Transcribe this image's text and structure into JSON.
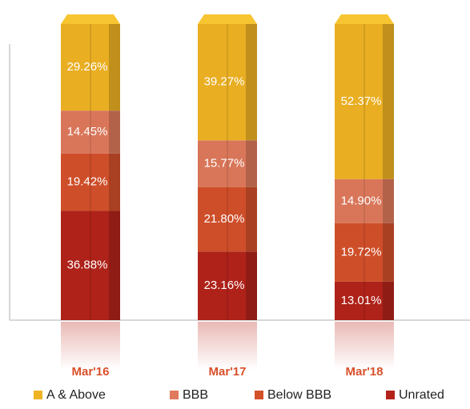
{
  "chart_data": {
    "type": "bar",
    "stacked": true,
    "categories": [
      "Mar'16",
      "Mar'17",
      "Mar'18"
    ],
    "ylim": [
      0,
      100
    ],
    "series": [
      {
        "name": "Unrated",
        "color": "#b3231a",
        "values": [
          36.88,
          23.16,
          13.01
        ],
        "value_labels": [
          "36.88%",
          "23.16%",
          "13.01%"
        ]
      },
      {
        "name": "Below BBB",
        "color": "#d4502a",
        "values": [
          19.42,
          21.8,
          19.72
        ],
        "value_labels": [
          "19.42%",
          "21.80%",
          "19.72%"
        ]
      },
      {
        "name": "BBB",
        "color": "#e07a5c",
        "values": [
          14.45,
          15.77,
          14.9
        ],
        "value_labels": [
          "14.45%",
          "15.77%",
          "14.90%"
        ]
      },
      {
        "name": "A & Above",
        "color": "#f0b323",
        "values": [
          29.26,
          39.27,
          52.37
        ],
        "value_labels": [
          "29.26%",
          "39.27%",
          "52.37%"
        ]
      }
    ]
  }
}
